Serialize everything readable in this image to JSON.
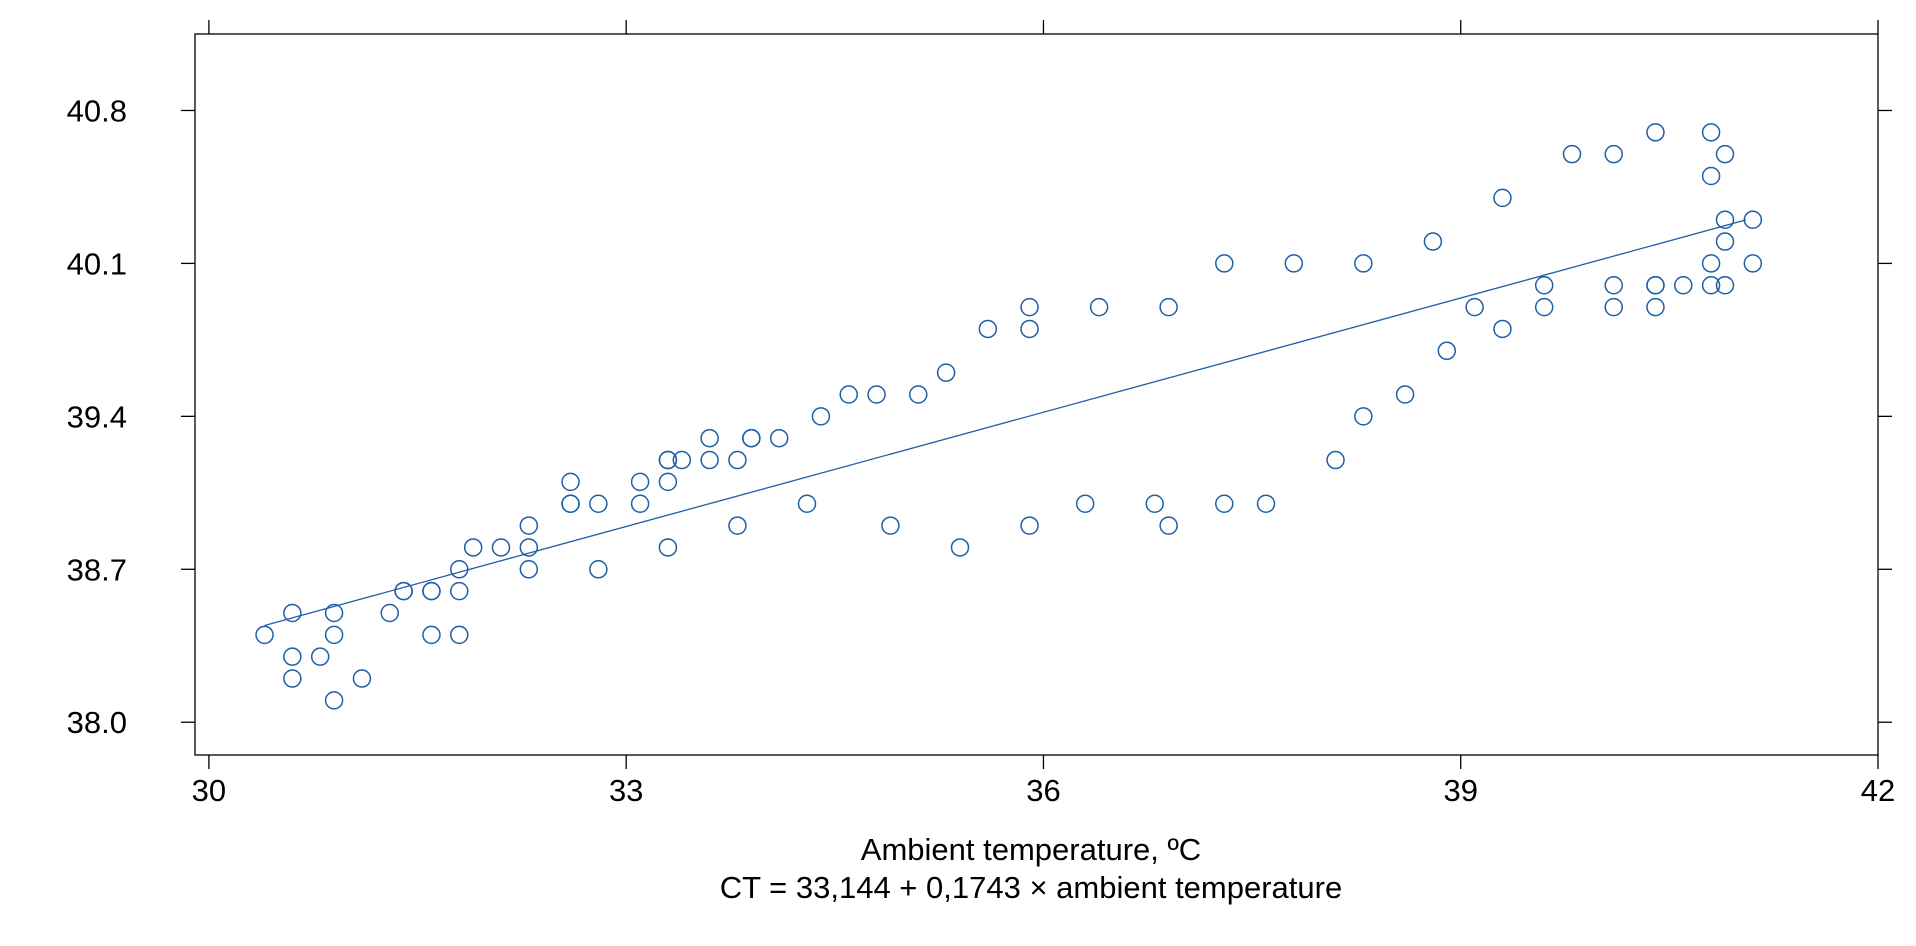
{
  "chart_data": {
    "type": "scatter",
    "title": "",
    "xlabel": "Ambient temperature, ºC",
    "caption": "CT = 33,144 + 0,1743 × ambient temperature",
    "ylabel": "",
    "xlim": [
      29.9,
      42
    ],
    "ylim": [
      37.85,
      41.15
    ],
    "x_ticks": [
      30,
      33,
      36,
      39,
      42
    ],
    "y_ticks": [
      38.0,
      38.7,
      39.4,
      40.1,
      40.8
    ],
    "x_tick_labels": [
      "30",
      "33",
      "36",
      "39",
      "42"
    ],
    "y_tick_labels": [
      "38.0",
      "38.7",
      "39.4",
      "40.1",
      "40.8"
    ],
    "grid": false,
    "marker": "open-circle",
    "colors": {
      "points": "#1f5fa6",
      "fit_line": "#1f5fa6",
      "frame": "#000000"
    },
    "fit_line": {
      "intercept": 33.144,
      "slope": 0.1743,
      "x_range": [
        30.4,
        41.05
      ]
    },
    "series": [
      {
        "values": [
          [
            30.4,
            38.4
          ],
          [
            30.6,
            38.5
          ],
          [
            30.6,
            38.3
          ],
          [
            30.6,
            38.2
          ],
          [
            30.8,
            38.3
          ],
          [
            30.9,
            38.5
          ],
          [
            30.9,
            38.4
          ],
          [
            30.9,
            38.1
          ],
          [
            31.1,
            38.2
          ],
          [
            31.3,
            38.5
          ],
          [
            31.4,
            38.6
          ],
          [
            31.4,
            38.6
          ],
          [
            31.6,
            38.6
          ],
          [
            31.6,
            38.6
          ],
          [
            31.6,
            38.4
          ],
          [
            31.8,
            38.6
          ],
          [
            31.8,
            38.7
          ],
          [
            31.8,
            38.4
          ],
          [
            31.9,
            38.8
          ],
          [
            32.1,
            38.8
          ],
          [
            32.3,
            38.9
          ],
          [
            32.3,
            38.8
          ],
          [
            32.3,
            38.7
          ],
          [
            32.6,
            39.1
          ],
          [
            32.6,
            39.0
          ],
          [
            32.6,
            39.0
          ],
          [
            32.8,
            39.0
          ],
          [
            32.8,
            38.7
          ],
          [
            33.1,
            39.1
          ],
          [
            33.1,
            39.0
          ],
          [
            33.3,
            39.2
          ],
          [
            33.3,
            39.2
          ],
          [
            33.3,
            39.1
          ],
          [
            33.3,
            38.8
          ],
          [
            33.4,
            39.2
          ],
          [
            33.6,
            39.3
          ],
          [
            33.6,
            39.2
          ],
          [
            33.8,
            39.2
          ],
          [
            33.8,
            38.9
          ],
          [
            33.9,
            39.3
          ],
          [
            33.9,
            39.3
          ],
          [
            34.1,
            39.3
          ],
          [
            34.3,
            39.0
          ],
          [
            34.4,
            39.4
          ],
          [
            34.6,
            39.5
          ],
          [
            34.8,
            39.5
          ],
          [
            34.9,
            38.9
          ],
          [
            35.1,
            39.5
          ],
          [
            35.3,
            39.6
          ],
          [
            35.4,
            38.8
          ],
          [
            35.6,
            39.8
          ],
          [
            35.9,
            39.9
          ],
          [
            35.9,
            39.8
          ],
          [
            35.9,
            38.9
          ],
          [
            36.3,
            39.0
          ],
          [
            36.4,
            39.9
          ],
          [
            36.8,
            39.0
          ],
          [
            36.9,
            39.9
          ],
          [
            36.9,
            38.9
          ],
          [
            37.3,
            40.1
          ],
          [
            37.3,
            39.0
          ],
          [
            37.6,
            39.0
          ],
          [
            37.8,
            40.1
          ],
          [
            38.1,
            39.2
          ],
          [
            38.3,
            40.1
          ],
          [
            38.3,
            39.4
          ],
          [
            38.6,
            39.5
          ],
          [
            38.8,
            40.2
          ],
          [
            38.9,
            39.7
          ],
          [
            39.1,
            39.9
          ],
          [
            39.3,
            40.4
          ],
          [
            39.3,
            39.8
          ],
          [
            39.6,
            40.0
          ],
          [
            39.6,
            39.9
          ],
          [
            39.8,
            40.6
          ],
          [
            40.1,
            40.6
          ],
          [
            40.1,
            40.0
          ],
          [
            40.1,
            39.9
          ],
          [
            40.4,
            40.7
          ],
          [
            40.4,
            40.0
          ],
          [
            40.4,
            40.0
          ],
          [
            40.4,
            39.9
          ],
          [
            40.6,
            40.0
          ],
          [
            40.8,
            40.7
          ],
          [
            40.8,
            40.5
          ],
          [
            40.8,
            40.1
          ],
          [
            40.8,
            40.0
          ],
          [
            40.9,
            40.6
          ],
          [
            40.9,
            40.3
          ],
          [
            40.9,
            40.2
          ],
          [
            40.9,
            40.0
          ],
          [
            41.1,
            40.3
          ],
          [
            41.1,
            40.1
          ]
        ]
      }
    ]
  }
}
